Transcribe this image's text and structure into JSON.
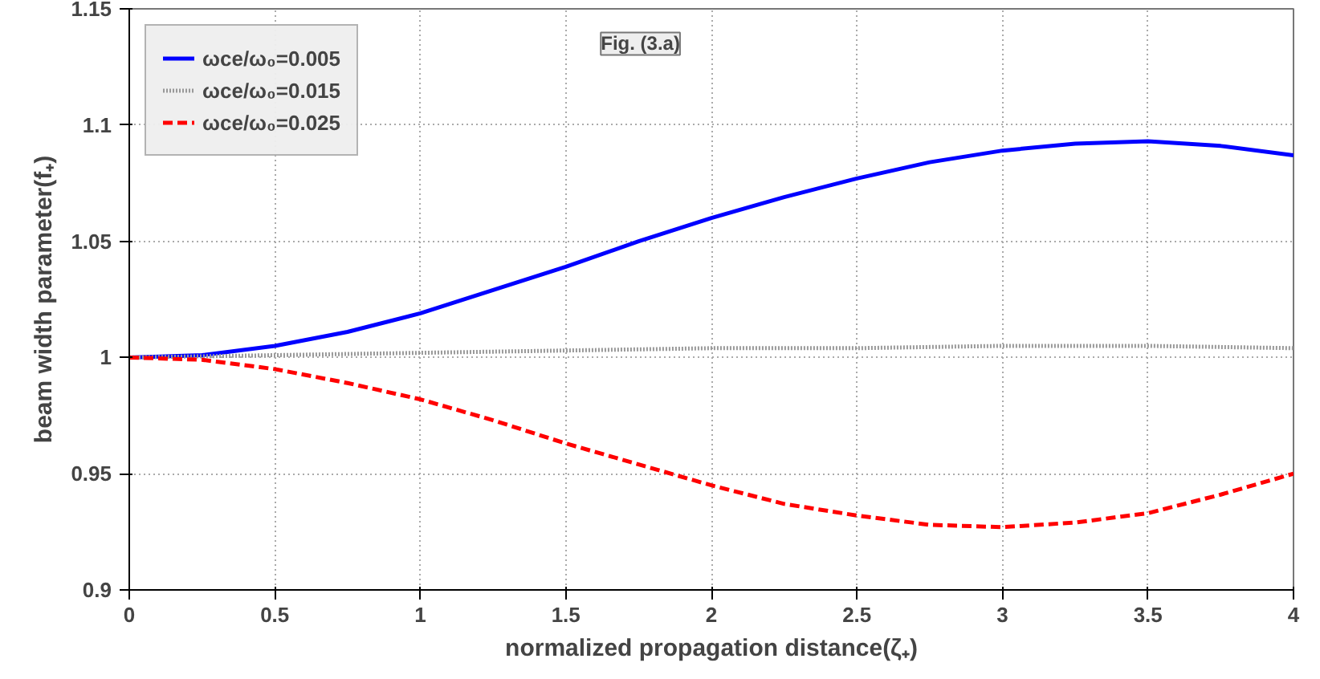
{
  "chart_data": {
    "type": "line",
    "xlabel": "normalized propagation distance(ζ₊)",
    "ylabel": "beam width parameter(f₊)",
    "annotations": [
      "Fig. (3.a)"
    ],
    "x": [
      0,
      0.25,
      0.5,
      0.75,
      1,
      1.25,
      1.5,
      1.75,
      2,
      2.25,
      2.5,
      2.75,
      3,
      3.25,
      3.5,
      3.75,
      4
    ],
    "series": [
      {
        "name": "ωce/ω₀=0.005",
        "color": "#0000ff",
        "line_style": "solid",
        "values": [
          1,
          1.001,
          1.005,
          1.011,
          1.019,
          1.029,
          1.039,
          1.05,
          1.06,
          1.069,
          1.077,
          1.084,
          1.089,
          1.092,
          1.093,
          1.091,
          1.087
        ]
      },
      {
        "name": "ωce/ω₀=0.015",
        "color": "#999999",
        "line_style": "dotted",
        "values": [
          1,
          1.0005,
          1.001,
          1.0015,
          1.002,
          1.0025,
          1.003,
          1.0035,
          1.004,
          1.004,
          1.004,
          1.0045,
          1.005,
          1.005,
          1.005,
          1.0045,
          1.004
        ]
      },
      {
        "name": "ωce/ω₀=0.025",
        "color": "#ff0000",
        "line_style": "dashed",
        "values": [
          1,
          0.999,
          0.995,
          0.989,
          0.982,
          0.973,
          0.963,
          0.954,
          0.945,
          0.937,
          0.932,
          0.928,
          0.927,
          0.929,
          0.933,
          0.941,
          0.95
        ]
      }
    ],
    "xlim": [
      0,
      4
    ],
    "ylim": [
      0.9,
      1.15
    ],
    "xticks": [
      0,
      0.5,
      1,
      1.5,
      2,
      2.5,
      3,
      3.5,
      4
    ],
    "yticks": [
      0.9,
      0.95,
      1,
      1.05,
      1.1,
      1.15
    ],
    "grid": true,
    "legend": "top left"
  }
}
